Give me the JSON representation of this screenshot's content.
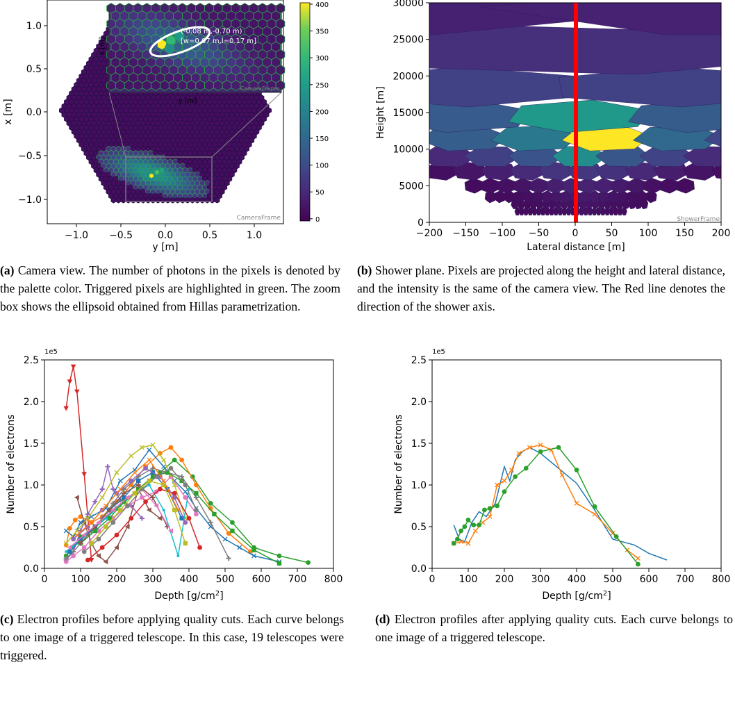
{
  "panel_a": {
    "xlabel": "y [m]",
    "ylabel": "x [m]",
    "xticks": [
      "−1.0",
      "−0.5",
      "0.0",
      "0.5",
      "1.0"
    ],
    "yticks": [
      "1.0",
      "0.5",
      "0.0",
      "−0.5",
      "−1.0"
    ],
    "frame_label": "CameraFrame",
    "inset": {
      "ylabel": "x [m]",
      "xlabel": "y [m]",
      "frame_label": "CameraFrame",
      "line1": "(-0.08 m,-0.70 m)",
      "line2": "[w=0.07 m,l=0.17 m]"
    },
    "colorbar_ticks": [
      "400",
      "350",
      "300",
      "250",
      "200",
      "150",
      "100",
      "50",
      "0"
    ],
    "caption_tag": "(a)",
    "caption": " Camera view.  The number of photons in the pixels is denoted by the palette color. Triggered pixels are highlighted in green.  The zoom box shows the ellipsoid obtained from Hillas parametrization."
  },
  "panel_b": {
    "xlabel": "Lateral distance [m]",
    "ylabel": "Height [m]",
    "xticks": [
      "−200",
      "−150",
      "−100",
      "−50",
      "0",
      "50",
      "100",
      "150",
      "200"
    ],
    "yticks": [
      "30000",
      "25000",
      "20000",
      "15000",
      "10000",
      "5000",
      "0"
    ],
    "frame_label": "ShowerFrame",
    "caption_tag": "(b)",
    "caption": " Shower plane.  Pixels are projected along the height and lateral distance, and the intensity is the same of the camera view.  The Red line denotes the direction of the shower axis."
  },
  "panel_c": {
    "caption_tag": "(c)",
    "caption": " Electron profiles before applying quality cuts. Each curve belongs to one image of a triggered telescope.  In this case, 19 telescopes were triggered."
  },
  "panel_d": {
    "caption_tag": "(d)",
    "caption": " Electron profiles after applying quality cuts.  Each curve belongs to one image of a triggered telescope."
  },
  "profile_axes": {
    "xlabel": "Depth [g/cm",
    "xlabel_sup": "2",
    "xlabel_end": "]",
    "ylabel": "Number of electrons",
    "multiplier": "1e5"
  },
  "chart_data": [
    {
      "type": "line",
      "panel": "c",
      "xlabel": "Depth [g/cm2]",
      "ylabel": "Number of electrons",
      "xlim": [
        0,
        800
      ],
      "ylim": [
        0,
        2.5
      ],
      "y_multiplier": "1e5",
      "xticks": [
        0,
        100,
        200,
        300,
        400,
        500,
        600,
        700,
        800
      ],
      "yticks": [
        0.0,
        0.5,
        1.0,
        1.5,
        2.0,
        2.5
      ],
      "series": [
        {
          "color": "#d62728",
          "marker": "v",
          "x": [
            60,
            70,
            80,
            90,
            110,
            130
          ],
          "y": [
            1.92,
            2.24,
            2.42,
            2.12,
            1.13,
            0.1
          ]
        },
        {
          "color": "#2ca02c",
          "marker": "o",
          "x": [
            60,
            75,
            100,
            140,
            200,
            260,
            320,
            360,
            410,
            460,
            520,
            580,
            650,
            730
          ],
          "y": [
            0.15,
            0.25,
            0.38,
            0.5,
            0.72,
            0.95,
            1.15,
            1.3,
            1.1,
            0.78,
            0.55,
            0.25,
            0.15,
            0.07
          ]
        },
        {
          "color": "#ff7f0e",
          "marker": "o",
          "x": [
            60,
            70,
            85,
            100,
            130,
            160,
            200,
            240,
            280,
            320,
            350,
            380,
            420,
            460,
            510,
            570
          ],
          "y": [
            0.28,
            0.48,
            0.58,
            0.62,
            0.55,
            0.62,
            0.8,
            1.0,
            1.22,
            1.38,
            1.45,
            1.3,
            1.0,
            0.72,
            0.42,
            0.2
          ]
        },
        {
          "color": "#1f77b4",
          "marker": "x",
          "x": [
            60,
            80,
            100,
            130,
            170,
            210,
            250,
            290,
            330,
            360,
            390,
            420,
            460,
            500,
            540,
            580,
            650
          ],
          "y": [
            0.45,
            0.38,
            0.55,
            0.62,
            0.72,
            1.05,
            1.18,
            1.42,
            1.22,
            1.05,
            0.92,
            0.72,
            0.5,
            0.35,
            0.25,
            0.15,
            0.08
          ]
        },
        {
          "color": "#9467bd",
          "marker": "P",
          "x": [
            60,
            80,
            100,
            120,
            140,
            160,
            175,
            190,
            210,
            240,
            270
          ],
          "y": [
            0.1,
            0.2,
            0.45,
            0.65,
            0.8,
            0.95,
            1.22,
            0.95,
            0.82,
            0.75,
            0.6
          ]
        },
        {
          "color": "#8c564b",
          "marker": "<",
          "x": [
            90,
            110,
            130,
            150,
            170,
            200,
            230,
            260,
            290,
            320
          ],
          "y": [
            0.85,
            0.55,
            0.3,
            0.15,
            0.08,
            0.25,
            0.5,
            0.95,
            0.7,
            0.6
          ]
        },
        {
          "color": "#e377c2",
          "marker": "o",
          "x": [
            60,
            80,
            110,
            150,
            190,
            230,
            270,
            310,
            350,
            390,
            420
          ],
          "y": [
            0.08,
            0.15,
            0.25,
            0.45,
            0.6,
            0.75,
            0.85,
            0.92,
            1.1,
            0.85,
            0.65
          ]
        },
        {
          "color": "#7f7f7f",
          "marker": "*",
          "x": [
            60,
            80,
            100,
            130,
            160,
            190,
            220,
            260,
            300,
            340,
            380,
            420,
            460,
            510
          ],
          "y": [
            0.12,
            0.2,
            0.3,
            0.45,
            0.6,
            0.78,
            0.95,
            1.1,
            1.2,
            1.15,
            1.1,
            0.85,
            0.55,
            0.12
          ]
        },
        {
          "color": "#bcbd22",
          "marker": "x",
          "x": [
            60,
            90,
            120,
            160,
            200,
            240,
            270,
            300,
            330,
            360,
            390
          ],
          "y": [
            0.3,
            0.45,
            0.6,
            0.85,
            1.15,
            1.35,
            1.45,
            1.48,
            1.3,
            1.0,
            0.6
          ]
        },
        {
          "color": "#17becf",
          "marker": ".",
          "x": [
            60,
            90,
            130,
            170,
            210,
            250,
            290,
            330,
            370,
            400
          ],
          "y": [
            0.2,
            0.3,
            0.45,
            0.6,
            0.75,
            0.9,
            1.0,
            0.7,
            0.15,
            0.95
          ]
        },
        {
          "color": "#1f77b4",
          "marker": "s",
          "x": [
            70,
            100,
            140,
            180,
            220,
            260,
            300,
            340,
            380
          ],
          "y": [
            0.2,
            0.35,
            0.5,
            0.7,
            0.85,
            1.05,
            1.15,
            0.95,
            0.6
          ]
        },
        {
          "color": "#d62728",
          "marker": "o",
          "x": [
            120,
            160,
            200,
            240,
            280,
            320,
            360,
            400,
            430
          ],
          "y": [
            0.1,
            0.25,
            0.4,
            0.6,
            0.8,
            0.95,
            0.9,
            0.6,
            0.25
          ]
        },
        {
          "color": "#2ca02c",
          "marker": "s",
          "x": [
            100,
            140,
            180,
            220,
            260,
            300,
            340,
            380,
            420,
            470,
            520,
            580,
            650
          ],
          "y": [
            0.3,
            0.45,
            0.6,
            0.8,
            0.95,
            1.1,
            1.15,
            1.05,
            0.9,
            0.65,
            0.45,
            0.22,
            0.06
          ]
        },
        {
          "color": "#9467bd",
          "marker": "o",
          "x": [
            80,
            120,
            160,
            200,
            240,
            280,
            320,
            360,
            390
          ],
          "y": [
            0.35,
            0.5,
            0.7,
            0.9,
            1.05,
            1.2,
            1.1,
            0.85,
            0.55
          ]
        },
        {
          "color": "#ff7f0e",
          "marker": "x",
          "x": [
            90,
            130,
            170,
            210,
            250,
            290,
            330,
            370
          ],
          "y": [
            0.4,
            0.55,
            0.75,
            0.95,
            1.15,
            1.3,
            1.05,
            0.7
          ]
        },
        {
          "color": "#8c564b",
          "marker": "*",
          "x": [
            100,
            140,
            180,
            220,
            260,
            300,
            340
          ],
          "y": [
            0.3,
            0.5,
            0.7,
            0.9,
            1.0,
            0.85,
            0.5
          ]
        },
        {
          "color": "#e377c2",
          "marker": "<",
          "x": [
            70,
            110,
            150,
            190,
            230,
            270,
            310,
            350
          ],
          "y": [
            0.25,
            0.4,
            0.55,
            0.7,
            0.85,
            0.95,
            0.75,
            0.45
          ]
        },
        {
          "color": "#7f7f7f",
          "marker": "o",
          "x": [
            110,
            150,
            190,
            230,
            270,
            310,
            350,
            390,
            420
          ],
          "y": [
            0.2,
            0.35,
            0.55,
            0.75,
            0.95,
            1.1,
            1.2,
            1.0,
            0.7
          ]
        },
        {
          "color": "#bcbd22",
          "marker": "s",
          "x": [
            130,
            170,
            210,
            250,
            290,
            330,
            360,
            390
          ],
          "y": [
            0.3,
            0.5,
            0.7,
            0.9,
            1.05,
            1.0,
            0.7,
            0.3
          ]
        }
      ]
    },
    {
      "type": "line",
      "panel": "d",
      "xlabel": "Depth [g/cm2]",
      "ylabel": "Number of electrons",
      "xlim": [
        0,
        800
      ],
      "ylim": [
        0,
        2.5
      ],
      "y_multiplier": "1e5",
      "xticks": [
        0,
        100,
        200,
        300,
        400,
        500,
        600,
        700,
        800
      ],
      "yticks": [
        0.0,
        0.5,
        1.0,
        1.5,
        2.0,
        2.5
      ],
      "series": [
        {
          "color": "#1f77b4",
          "marker": "",
          "x": [
            60,
            75,
            90,
            110,
            130,
            150,
            175,
            200,
            215,
            230,
            250,
            270,
            300,
            350,
            400,
            450,
            500,
            560,
            600,
            650
          ],
          "y": [
            0.52,
            0.35,
            0.32,
            0.55,
            0.68,
            0.62,
            0.78,
            1.22,
            1.05,
            1.3,
            1.4,
            1.45,
            1.38,
            1.2,
            1.02,
            0.7,
            0.35,
            0.28,
            0.18,
            0.1
          ]
        },
        {
          "color": "#ff7f0e",
          "marker": "x",
          "x": [
            60,
            80,
            100,
            120,
            140,
            160,
            180,
            200,
            220,
            240,
            270,
            300,
            330,
            360,
            400,
            450,
            500,
            540,
            570
          ],
          "y": [
            0.3,
            0.32,
            0.3,
            0.45,
            0.55,
            0.62,
            1.0,
            1.05,
            1.18,
            1.38,
            1.45,
            1.48,
            1.42,
            1.12,
            0.78,
            0.65,
            0.42,
            0.22,
            0.12
          ]
        },
        {
          "color": "#2ca02c",
          "marker": "o",
          "x": [
            60,
            70,
            80,
            90,
            100,
            115,
            130,
            145,
            160,
            180,
            200,
            230,
            260,
            300,
            350,
            400,
            450,
            510,
            570
          ],
          "y": [
            0.3,
            0.35,
            0.45,
            0.5,
            0.58,
            0.52,
            0.52,
            0.7,
            0.72,
            0.75,
            0.92,
            1.1,
            1.2,
            1.4,
            1.45,
            1.18,
            0.74,
            0.38,
            0.05
          ]
        }
      ]
    }
  ]
}
